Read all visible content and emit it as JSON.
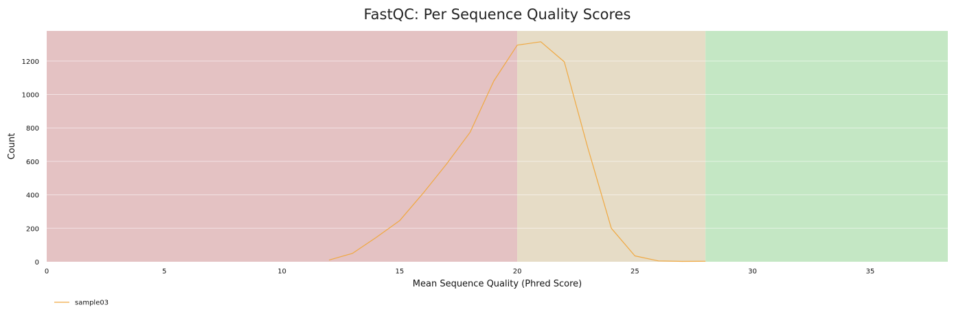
{
  "chart_data": {
    "type": "line",
    "title": "FastQC: Per Sequence Quality Scores",
    "xlabel": "Mean Sequence Quality (Phred Score)",
    "ylabel": "Count",
    "xlim": [
      0,
      38.3
    ],
    "ylim": [
      0,
      1380
    ],
    "xticks": [
      0,
      5,
      10,
      15,
      20,
      25,
      30,
      35
    ],
    "yticks": [
      0,
      200,
      400,
      600,
      800,
      1000,
      1200
    ],
    "grid": true,
    "legend_position": "bottom-left",
    "bands": [
      {
        "from": 0,
        "to": 20,
        "color": "#e4c2c3"
      },
      {
        "from": 20,
        "to": 28,
        "color": "#e6dcc6"
      },
      {
        "from": 28,
        "to": 38.3,
        "color": "#c4e7c4"
      }
    ],
    "series": [
      {
        "name": "sample03",
        "color": "#f0a840",
        "x": [
          12,
          13,
          14,
          15,
          16,
          17,
          18,
          19,
          20,
          21,
          22,
          23,
          24,
          25,
          26,
          27,
          28
        ],
        "y": [
          10,
          50,
          145,
          245,
          410,
          585,
          775,
          1080,
          1295,
          1315,
          1195,
          680,
          200,
          35,
          5,
          2,
          3
        ]
      }
    ]
  }
}
